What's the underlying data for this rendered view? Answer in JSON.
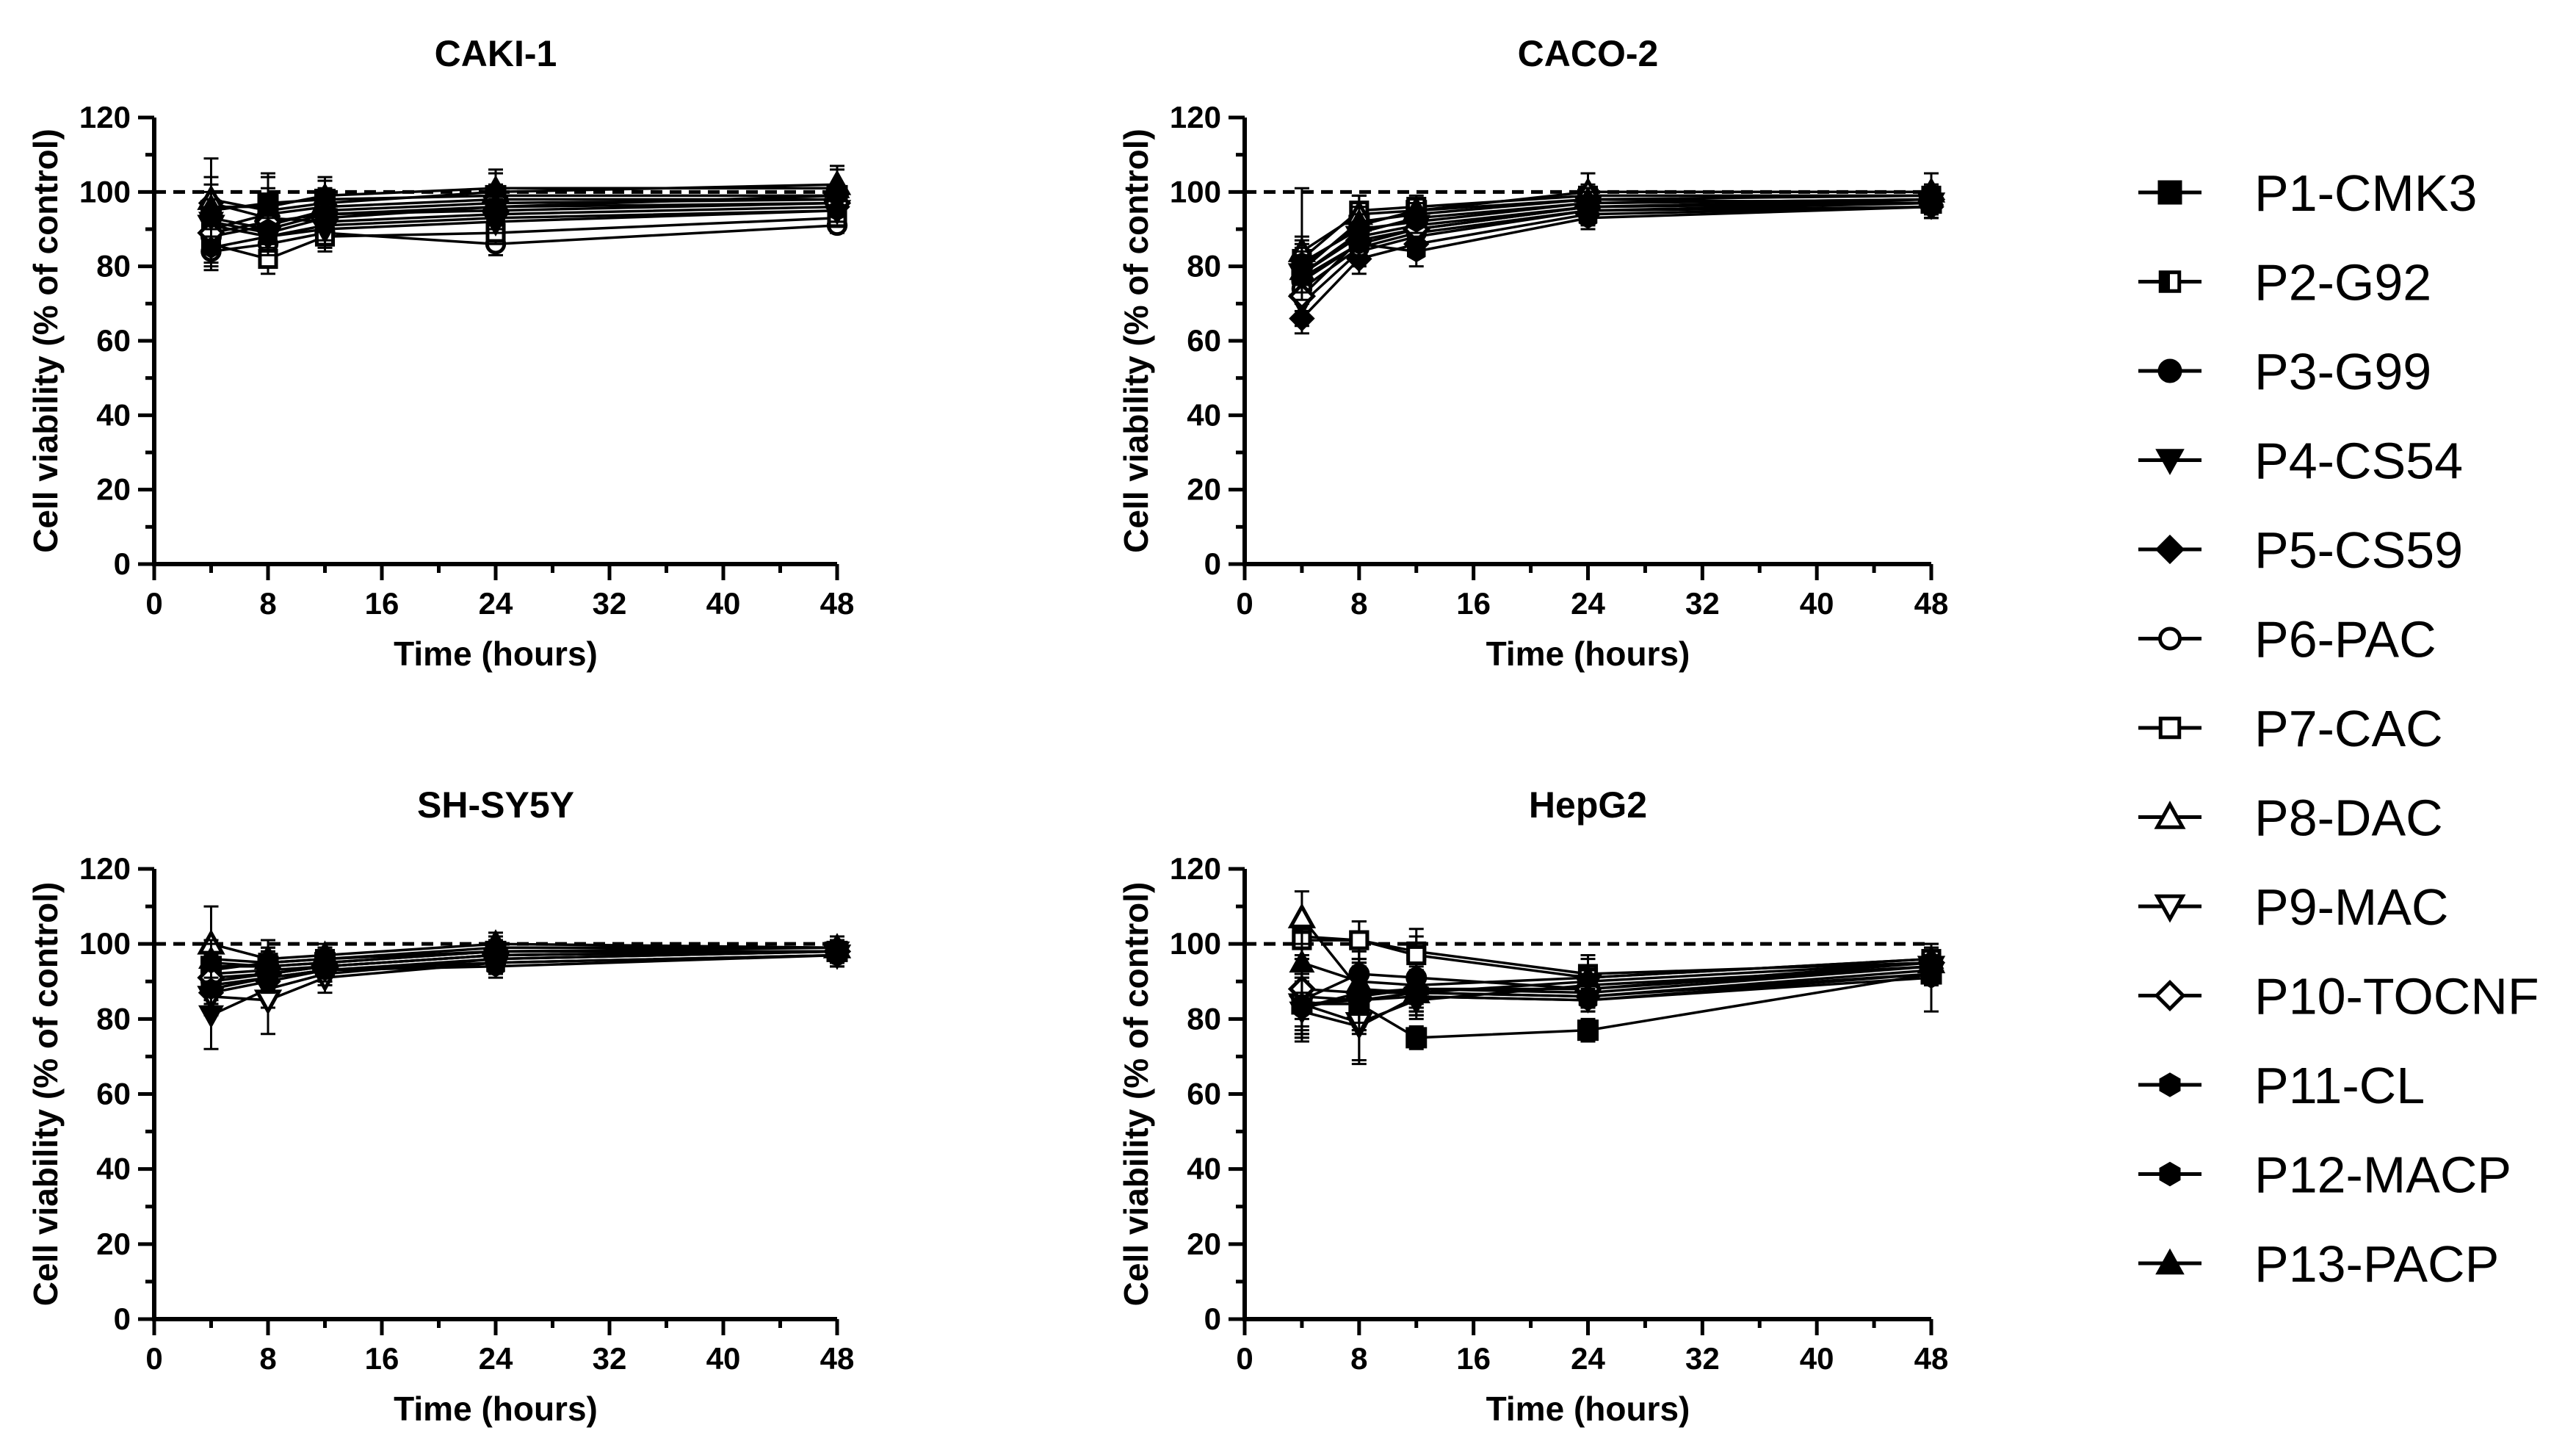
{
  "chart_data": [
    {
      "type": "line",
      "title": "CAKI-1",
      "xlabel": "Time (hours)",
      "ylabel": "Cell viability (% of control)",
      "xlim": [
        0,
        48
      ],
      "ylim": [
        0,
        120
      ],
      "xticks": [
        0,
        8,
        16,
        24,
        32,
        40,
        48
      ],
      "yticks": [
        0,
        20,
        40,
        60,
        80,
        100,
        120
      ],
      "reference_line": 100,
      "x": [
        4,
        8,
        12,
        24,
        48
      ],
      "series": [
        {
          "name": "P1-CMK3",
          "values": [
            95,
            97,
            98,
            99,
            99
          ],
          "errors": [
            5,
            4,
            3,
            3,
            3
          ]
        },
        {
          "name": "P2-G92",
          "values": [
            90,
            94,
            96,
            98,
            98
          ],
          "errors": [
            4,
            5,
            4,
            3,
            3
          ]
        },
        {
          "name": "P3-G99",
          "values": [
            88,
            91,
            95,
            97,
            98
          ],
          "errors": [
            5,
            5,
            4,
            3,
            3
          ]
        },
        {
          "name": "P4-CS54",
          "values": [
            92,
            89,
            93,
            96,
            97
          ],
          "errors": [
            6,
            5,
            4,
            3,
            3
          ]
        },
        {
          "name": "P5-CS59",
          "values": [
            97,
            93,
            92,
            94,
            96
          ],
          "errors": [
            5,
            4,
            4,
            3,
            3
          ]
        },
        {
          "name": "P6-PAC",
          "values": [
            84,
            86,
            89,
            86,
            91
          ],
          "errors": [
            5,
            4,
            4,
            3,
            2
          ]
        },
        {
          "name": "P7-CAC",
          "values": [
            86,
            82,
            88,
            89,
            93
          ],
          "errors": [
            5,
            4,
            4,
            3,
            2
          ]
        },
        {
          "name": "P8-DAC",
          "values": [
            98,
            95,
            97,
            100,
            102
          ],
          "errors": [
            11,
            9,
            6,
            5,
            5
          ]
        },
        {
          "name": "P9-MAC",
          "values": [
            91,
            88,
            90,
            92,
            95
          ],
          "errors": [
            5,
            5,
            4,
            3,
            3
          ]
        },
        {
          "name": "P10-TOCNF",
          "values": [
            89,
            92,
            94,
            95,
            97
          ],
          "errors": [
            5,
            5,
            4,
            3,
            3
          ]
        },
        {
          "name": "P11-CL",
          "values": [
            93,
            90,
            94,
            96,
            99
          ],
          "errors": [
            5,
            5,
            4,
            3,
            3
          ]
        },
        {
          "name": "P12-MACP",
          "values": [
            85,
            88,
            91,
            93,
            95
          ],
          "errors": [
            5,
            5,
            4,
            3,
            3
          ]
        },
        {
          "name": "P13-PACP",
          "values": [
            96,
            96,
            99,
            101,
            101
          ],
          "errors": [
            8,
            9,
            5,
            5,
            5
          ]
        }
      ]
    },
    {
      "type": "line",
      "title": "CACO-2",
      "xlabel": "Time (hours)",
      "ylabel": "Cell viability (% of control)",
      "xlim": [
        0,
        48
      ],
      "ylim": [
        0,
        120
      ],
      "xticks": [
        0,
        8,
        16,
        24,
        32,
        40,
        48
      ],
      "yticks": [
        0,
        20,
        40,
        60,
        80,
        100,
        120
      ],
      "reference_line": 100,
      "x": [
        4,
        8,
        12,
        24,
        48
      ],
      "series": [
        {
          "name": "P1-CMK3",
          "values": [
            80,
            91,
            95,
            98,
            97
          ],
          "errors": [
            6,
            4,
            3,
            3,
            3
          ]
        },
        {
          "name": "P2-G92",
          "values": [
            78,
            89,
            93,
            97,
            98
          ],
          "errors": [
            6,
            4,
            3,
            3,
            3
          ]
        },
        {
          "name": "P3-G99",
          "values": [
            76,
            86,
            90,
            96,
            97
          ],
          "errors": [
            6,
            4,
            3,
            3,
            3
          ]
        },
        {
          "name": "P4-CS54",
          "values": [
            70,
            84,
            88,
            95,
            96
          ],
          "errors": [
            6,
            4,
            3,
            3,
            3
          ]
        },
        {
          "name": "P5-CS59",
          "values": [
            66,
            82,
            86,
            94,
            96
          ],
          "errors": [
            4,
            4,
            3,
            3,
            3
          ]
        },
        {
          "name": "P6-PAC",
          "values": [
            74,
            85,
            89,
            95,
            97
          ],
          "errors": [
            6,
            4,
            3,
            3,
            3
          ]
        },
        {
          "name": "P7-CAC",
          "values": [
            82,
            95,
            96,
            99,
            99
          ],
          "errors": [
            6,
            4,
            3,
            3,
            3
          ]
        },
        {
          "name": "P8-DAC",
          "values": [
            84,
            94,
            95,
            100,
            100
          ],
          "errors": [
            17,
            5,
            3,
            5,
            5
          ]
        },
        {
          "name": "P9-MAC",
          "values": [
            78,
            88,
            91,
            96,
            97
          ],
          "errors": [
            6,
            4,
            3,
            3,
            3
          ]
        },
        {
          "name": "P10-TOCNF",
          "values": [
            72,
            87,
            90,
            96,
            98
          ],
          "errors": [
            6,
            4,
            3,
            3,
            3
          ]
        },
        {
          "name": "P11-CL",
          "values": [
            81,
            90,
            92,
            97,
            98
          ],
          "errors": [
            6,
            4,
            3,
            3,
            3
          ]
        },
        {
          "name": "P12-MACP",
          "values": [
            77,
            86,
            84,
            93,
            96
          ],
          "errors": [
            6,
            4,
            4,
            3,
            3
          ]
        },
        {
          "name": "P13-PACP",
          "values": [
            79,
            92,
            94,
            98,
            99
          ],
          "errors": [
            6,
            4,
            3,
            3,
            3
          ]
        }
      ]
    },
    {
      "type": "line",
      "title": "SH-SY5Y",
      "xlabel": "Time (hours)",
      "ylabel": "Cell viability (% of control)",
      "xlim": [
        0,
        48
      ],
      "ylim": [
        0,
        120
      ],
      "xticks": [
        0,
        8,
        16,
        24,
        32,
        40,
        48
      ],
      "yticks": [
        0,
        20,
        40,
        60,
        80,
        100,
        120
      ],
      "reference_line": 100,
      "x": [
        4,
        8,
        12,
        24,
        48
      ],
      "series": [
        {
          "name": "P1-CMK3",
          "values": [
            94,
            94,
            95,
            98,
            98
          ],
          "errors": [
            5,
            4,
            3,
            3,
            3
          ]
        },
        {
          "name": "P2-G92",
          "values": [
            92,
            93,
            94,
            97,
            98
          ],
          "errors": [
            5,
            4,
            3,
            3,
            3
          ]
        },
        {
          "name": "P3-G99",
          "values": [
            90,
            92,
            94,
            97,
            98
          ],
          "errors": [
            5,
            4,
            3,
            3,
            3
          ]
        },
        {
          "name": "P4-CS54",
          "values": [
            81,
            88,
            92,
            96,
            98
          ],
          "errors": [
            9,
            5,
            3,
            3,
            3
          ]
        },
        {
          "name": "P5-CS59",
          "values": [
            87,
            90,
            93,
            96,
            98
          ],
          "errors": [
            5,
            4,
            3,
            3,
            3
          ]
        },
        {
          "name": "P6-PAC",
          "values": [
            89,
            91,
            93,
            95,
            97
          ],
          "errors": [
            5,
            4,
            3,
            3,
            3
          ]
        },
        {
          "name": "P7-CAC",
          "values": [
            93,
            95,
            96,
            98,
            98
          ],
          "errors": [
            5,
            4,
            3,
            3,
            3
          ]
        },
        {
          "name": "P8-DAC",
          "values": [
            100,
            96,
            97,
            100,
            99
          ],
          "errors": [
            10,
            5,
            3,
            3,
            3
          ]
        },
        {
          "name": "P9-MAC",
          "values": [
            86,
            85,
            91,
            95,
            97
          ],
          "errors": [
            5,
            9,
            4,
            3,
            3
          ]
        },
        {
          "name": "P10-TOCNF",
          "values": [
            91,
            92,
            94,
            97,
            98
          ],
          "errors": [
            5,
            4,
            3,
            3,
            3
          ]
        },
        {
          "name": "P11-CL",
          "values": [
            95,
            94,
            95,
            98,
            99
          ],
          "errors": [
            5,
            4,
            3,
            3,
            3
          ]
        },
        {
          "name": "P12-MACP",
          "values": [
            88,
            91,
            93,
            94,
            97
          ],
          "errors": [
            5,
            4,
            3,
            3,
            3
          ]
        },
        {
          "name": "P13-PACP",
          "values": [
            96,
            95,
            96,
            99,
            99
          ],
          "errors": [
            5,
            4,
            3,
            3,
            3
          ]
        }
      ]
    },
    {
      "type": "line",
      "title": "HepG2",
      "xlabel": "Time (hours)",
      "ylabel": "Cell viability (% of control)",
      "xlim": [
        0,
        48
      ],
      "ylim": [
        0,
        120
      ],
      "xticks": [
        0,
        8,
        16,
        24,
        32,
        40,
        48
      ],
      "yticks": [
        0,
        20,
        40,
        60,
        80,
        100,
        120
      ],
      "reference_line": 100,
      "x": [
        4,
        8,
        12,
        24,
        48
      ],
      "series": [
        {
          "name": "P1-CMK3",
          "values": [
            84,
            84,
            75,
            77,
            92
          ],
          "errors": [
            8,
            8,
            3,
            3,
            3
          ]
        },
        {
          "name": "P2-G92",
          "values": [
            102,
            101,
            98,
            92,
            95
          ],
          "errors": [
            5,
            5,
            6,
            5,
            5
          ]
        },
        {
          "name": "P3-G99",
          "values": [
            85,
            92,
            91,
            88,
            94
          ],
          "errors": [
            8,
            8,
            5,
            3,
            3
          ]
        },
        {
          "name": "P4-CS54",
          "values": [
            82,
            78,
            86,
            85,
            92
          ],
          "errors": [
            8,
            10,
            5,
            3,
            3
          ]
        },
        {
          "name": "P5-CS59",
          "values": [
            86,
            85,
            87,
            86,
            93
          ],
          "errors": [
            8,
            8,
            5,
            3,
            3
          ]
        },
        {
          "name": "P6-PAC",
          "values": [
            83,
            86,
            88,
            87,
            94
          ],
          "errors": [
            8,
            8,
            5,
            3,
            3
          ]
        },
        {
          "name": "P7-CAC",
          "values": [
            101,
            101,
            97,
            91,
            96
          ],
          "errors": [
            5,
            5,
            5,
            5,
            3
          ]
        },
        {
          "name": "P8-DAC",
          "values": [
            107,
            88,
            87,
            90,
            95
          ],
          "errors": [
            7,
            8,
            5,
            4,
            3
          ]
        },
        {
          "name": "P9-MAC",
          "values": [
            84,
            79,
            85,
            89,
            94
          ],
          "errors": [
            8,
            10,
            5,
            3,
            3
          ]
        },
        {
          "name": "P10-TOCNF",
          "values": [
            88,
            87,
            88,
            88,
            95
          ],
          "errors": [
            8,
            8,
            5,
            3,
            3
          ]
        },
        {
          "name": "P11-CL",
          "values": [
            84,
            85,
            86,
            85,
            91
          ],
          "errors": [
            8,
            8,
            5,
            3,
            9
          ]
        },
        {
          "name": "P12-MACP",
          "values": [
            83,
            87,
            87,
            86,
            92
          ],
          "errors": [
            8,
            8,
            5,
            3,
            3
          ]
        },
        {
          "name": "P13-PACP",
          "values": [
            95,
            90,
            89,
            91,
            96
          ],
          "errors": [
            8,
            8,
            5,
            3,
            3
          ]
        }
      ]
    }
  ],
  "legend": {
    "items": [
      {
        "label": "P1-CMK3",
        "marker": "square-filled"
      },
      {
        "label": "P2-G92",
        "marker": "square-half"
      },
      {
        "label": "P3-G99",
        "marker": "circle-filled"
      },
      {
        "label": "P4-CS54",
        "marker": "triangle-down-filled"
      },
      {
        "label": "P5-CS59",
        "marker": "diamond-filled"
      },
      {
        "label": "P6-PAC",
        "marker": "circle-open"
      },
      {
        "label": "P7-CAC",
        "marker": "square-open"
      },
      {
        "label": "P8-DAC",
        "marker": "triangle-up-open"
      },
      {
        "label": "P9-MAC",
        "marker": "triangle-down-open"
      },
      {
        "label": "P10-TOCNF",
        "marker": "diamond-open"
      },
      {
        "label": "P11-CL",
        "marker": "hexagon-filled"
      },
      {
        "label": "P12-MACP",
        "marker": "hexagon-filled"
      },
      {
        "label": "P13-PACP",
        "marker": "triangle-up-filled"
      }
    ]
  }
}
